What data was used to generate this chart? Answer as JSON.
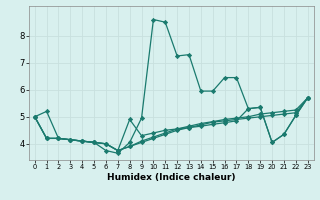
{
  "xlabel": "Humidex (Indice chaleur)",
  "background_color": "#d8f0ee",
  "grid_color": "#c8e0de",
  "line_color": "#1a7a6e",
  "xlim": [
    -0.5,
    23.5
  ],
  "ylim": [
    3.4,
    9.1
  ],
  "yticks": [
    4,
    5,
    6,
    7,
    8
  ],
  "xticks": [
    0,
    1,
    2,
    3,
    4,
    5,
    6,
    7,
    8,
    9,
    10,
    11,
    12,
    13,
    14,
    15,
    16,
    17,
    18,
    19,
    20,
    21,
    22,
    23
  ],
  "lines": [
    {
      "x": [
        0,
        1,
        2,
        3,
        4,
        5,
        6,
        7,
        8,
        9,
        10,
        11,
        12,
        13,
        14,
        15,
        16,
        17,
        18,
        19,
        20,
        21,
        22,
        23
      ],
      "y": [
        5.0,
        5.2,
        4.2,
        4.15,
        4.1,
        4.05,
        3.75,
        3.65,
        4.05,
        4.95,
        8.6,
        8.5,
        7.25,
        7.3,
        5.95,
        5.95,
        6.45,
        6.45,
        5.3,
        5.35,
        4.05,
        4.35,
        5.05,
        5.7
      ]
    },
    {
      "x": [
        0,
        1,
        2,
        3,
        4,
        5,
        6,
        7,
        8,
        9,
        10,
        11,
        12,
        13,
        14,
        15,
        16,
        17,
        18,
        19,
        20,
        21,
        22,
        23
      ],
      "y": [
        5.0,
        4.2,
        4.2,
        4.15,
        4.1,
        4.05,
        4.0,
        3.75,
        3.9,
        4.05,
        4.2,
        4.35,
        4.5,
        4.6,
        4.7,
        4.8,
        4.85,
        4.9,
        4.95,
        5.0,
        5.05,
        5.1,
        5.15,
        5.7
      ]
    },
    {
      "x": [
        0,
        1,
        2,
        3,
        4,
        5,
        6,
        7,
        8,
        9,
        10,
        11,
        12,
        13,
        14,
        15,
        16,
        17,
        18,
        19,
        20,
        21,
        22,
        23
      ],
      "y": [
        5.0,
        4.2,
        4.2,
        4.15,
        4.1,
        4.05,
        4.0,
        3.75,
        3.9,
        4.1,
        4.25,
        4.4,
        4.55,
        4.65,
        4.75,
        4.82,
        4.9,
        4.95,
        5.0,
        5.1,
        5.15,
        5.2,
        5.25,
        5.7
      ]
    },
    {
      "x": [
        0,
        1,
        2,
        3,
        4,
        5,
        6,
        7,
        8,
        9,
        10,
        11,
        12,
        13,
        14,
        15,
        16,
        17,
        18,
        19,
        20,
        21,
        22,
        23
      ],
      "y": [
        5.0,
        4.2,
        4.2,
        4.15,
        4.1,
        4.05,
        4.0,
        3.75,
        4.9,
        4.3,
        4.4,
        4.5,
        4.55,
        4.6,
        4.65,
        4.72,
        4.78,
        4.85,
        5.3,
        5.35,
        4.05,
        4.35,
        5.05,
        5.7
      ]
    }
  ]
}
